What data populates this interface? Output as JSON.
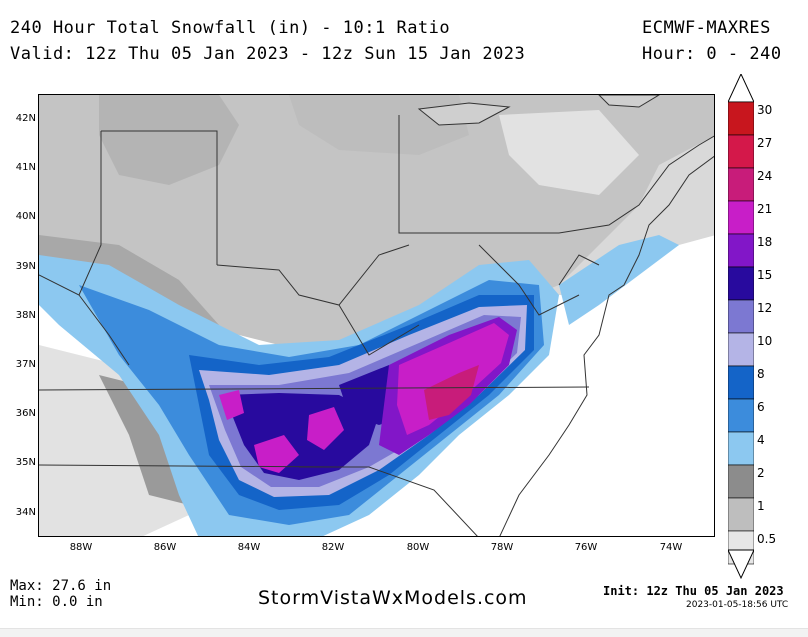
{
  "header": {
    "title_line1": "240 Hour Total Snowfall (in) - 10:1 Ratio",
    "title_line2": "Valid: 12z Thu 05 Jan 2023 - 12z Sun 15 Jan 2023",
    "model": "ECMWF-MAXRES",
    "hours": "Hour: 0 - 240"
  },
  "axes": {
    "lat_labels": [
      "42N",
      "41N",
      "40N",
      "39N",
      "38N",
      "37N",
      "36N",
      "35N",
      "34N"
    ],
    "lon_labels": [
      "88W",
      "86W",
      "84W",
      "82W",
      "80W",
      "78W",
      "76W",
      "74W"
    ]
  },
  "colorbar": {
    "levels": [
      "30",
      "27",
      "24",
      "21",
      "18",
      "15",
      "12",
      "10",
      "8",
      "6",
      "4",
      "2",
      "1",
      "0.5"
    ],
    "colors": [
      "#c8161e",
      "#d4184a",
      "#c81c7a",
      "#c81ec8",
      "#8216c8",
      "#280a9e",
      "#7c78d2",
      "#b4b4e6",
      "#1464c8",
      "#3c8cdc",
      "#8cc8f0",
      "#8c8c8c",
      "#bebebe",
      "#e6e6e6"
    ]
  },
  "footer": {
    "max": "Max: 27.6 in",
    "min": "Min: 0.0 in",
    "site": "StormVistaWxModels.com",
    "init": "Init: 12z Thu 05 Jan 2023",
    "timestamp": "2023-01-05-18:56 UTC"
  }
}
